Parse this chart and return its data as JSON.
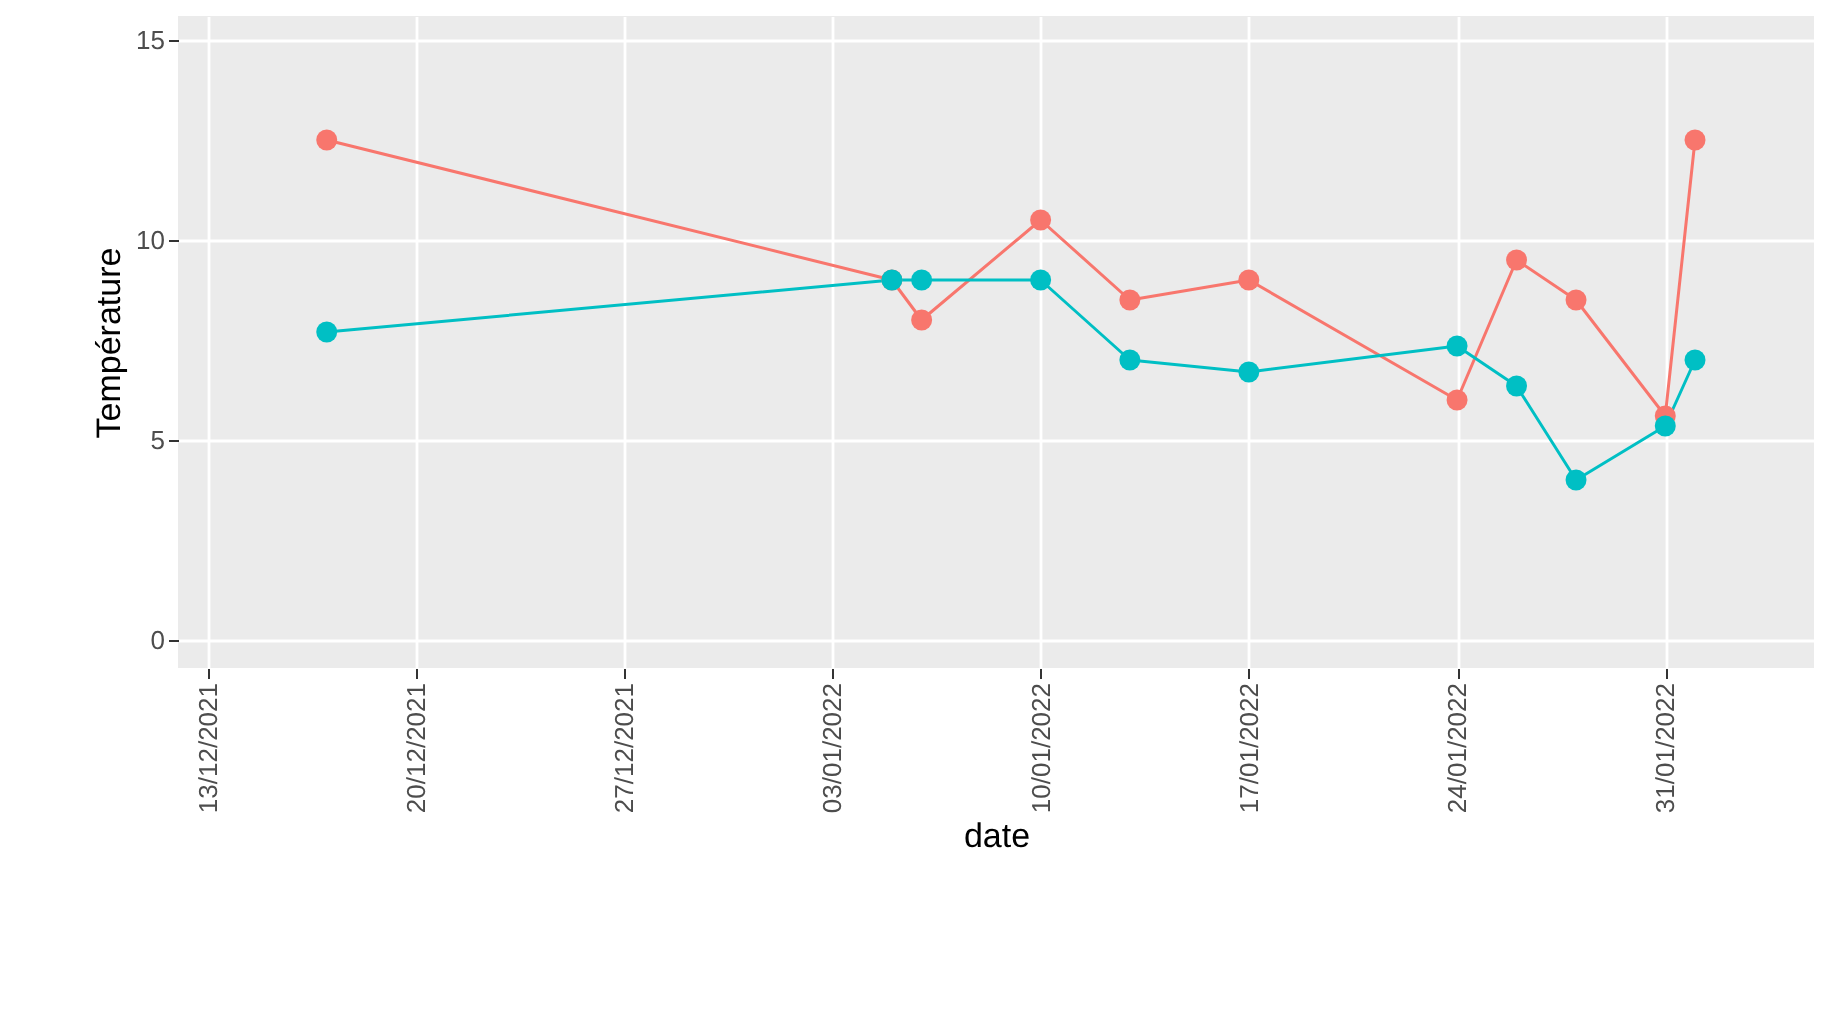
{
  "chart_data": {
    "type": "line",
    "xlabel": "date",
    "ylabel": "Température",
    "x": [
      "2021-12-17",
      "2022-01-05",
      "2022-01-06",
      "2022-01-10",
      "2022-01-13",
      "2022-01-17",
      "2022-01-24",
      "2022-01-26",
      "2022-01-28",
      "2022-01-31",
      "2022-02-01"
    ],
    "series": [
      {
        "color": "#f8766d",
        "values": [
          12.5,
          9.0,
          8.0,
          10.5,
          8.5,
          9.0,
          6.0,
          9.5,
          8.5,
          5.6,
          12.5
        ]
      },
      {
        "color": "#00bfc4",
        "values": [
          7.7,
          9.0,
          9.0,
          9.0,
          7.0,
          6.7,
          7.35,
          6.35,
          4.0,
          5.35,
          7.0
        ]
      }
    ],
    "xlim": [
      "2021-12-12",
      "2022-02-05"
    ],
    "xticks": [
      {
        "value": "2021-12-13",
        "label": "13/12/2021"
      },
      {
        "value": "2021-12-20",
        "label": "20/12/2021"
      },
      {
        "value": "2021-12-27",
        "label": "27/12/2021"
      },
      {
        "value": "2022-01-03",
        "label": "03/01/2022"
      },
      {
        "value": "2022-01-10",
        "label": "10/01/2022"
      },
      {
        "value": "2022-01-17",
        "label": "17/01/2022"
      },
      {
        "value": "2022-01-24",
        "label": "24/01/2022"
      },
      {
        "value": "2022-01-31",
        "label": "31/01/2022"
      }
    ],
    "ylim": [
      -0.7,
      15.6
    ],
    "yticks": [
      0,
      5,
      10,
      15
    ],
    "grid": true,
    "marker": "circle",
    "line_style": "solid"
  }
}
